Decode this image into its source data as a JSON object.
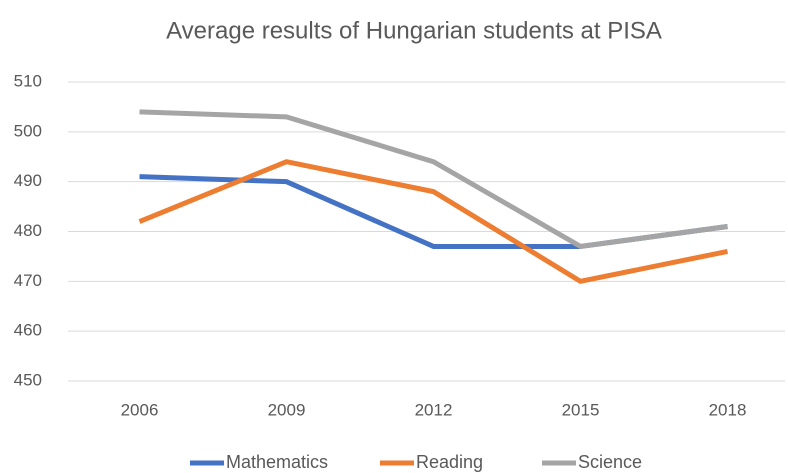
{
  "chart_data": {
    "type": "line",
    "title": "Average results of Hungarian students at PISA",
    "categories": [
      "2006",
      "2009",
      "2012",
      "2015",
      "2018"
    ],
    "series": [
      {
        "name": "Mathematics",
        "color": "#4472c4",
        "values": [
          491,
          490,
          477,
          477,
          481
        ]
      },
      {
        "name": "Reading",
        "color": "#ed7d31",
        "values": [
          482,
          494,
          488,
          470,
          476
        ]
      },
      {
        "name": "Science",
        "color": "#a5a5a5",
        "values": [
          504,
          503,
          494,
          477,
          481
        ]
      }
    ],
    "ylim": [
      450,
      510
    ],
    "yticks": [
      450,
      460,
      470,
      480,
      490,
      500,
      510
    ],
    "grid": true,
    "legend": "bottom"
  }
}
